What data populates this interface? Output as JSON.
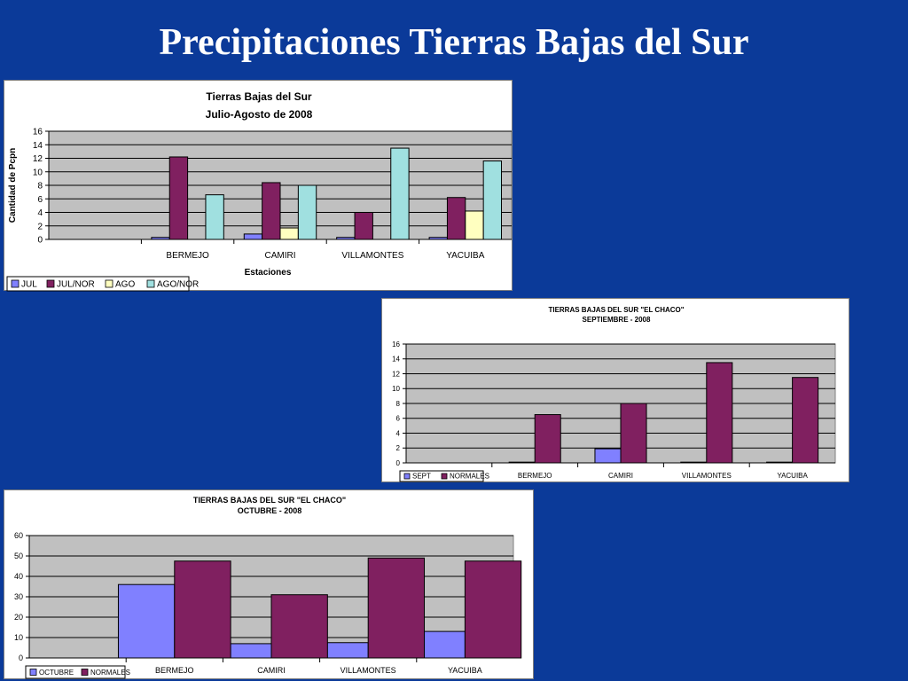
{
  "slide": {
    "title": "Precipitaciones Tierras Bajas del Sur"
  },
  "colors": {
    "background": "#0b3a99",
    "JUL": "#8080ff",
    "JUL/NOR": "#802060",
    "AGO": "#ffffc0",
    "AGO/NOR": "#a0e0e0",
    "SEPT": "#8080ff",
    "NORMALES": "#802060",
    "OCTUBRE": "#8080ff",
    "plot_area": "#c0c0c0"
  },
  "chart_data": [
    {
      "type": "bar",
      "title": "Tierras Bajas del Sur",
      "subtitle": "Julio-Agosto de 2008",
      "xlabel": "Estaciones",
      "ylabel": "Cantidad de Pcpn",
      "ylim": [
        0,
        16
      ],
      "yticks": [
        0,
        2,
        4,
        6,
        8,
        10,
        12,
        14,
        16
      ],
      "categories": [
        "",
        "BERMEJO",
        "CAMIRI",
        "VILLAMONTES",
        "YACUIBA"
      ],
      "grid": true,
      "legend_placement": "bottom-left",
      "series": [
        {
          "name": "JUL",
          "values": [
            0,
            0.3,
            0.8,
            0.3,
            0.3
          ]
        },
        {
          "name": "JUL/NOR",
          "values": [
            0,
            12.2,
            8.4,
            4.0,
            6.2
          ]
        },
        {
          "name": "AGO",
          "values": [
            0,
            0,
            1.7,
            0,
            4.2
          ]
        },
        {
          "name": "AGO/NOR",
          "values": [
            0,
            6.6,
            8.0,
            13.5,
            11.6
          ]
        }
      ]
    },
    {
      "type": "bar",
      "title": "TIERRAS BAJAS DEL SUR \"EL CHACO\"",
      "subtitle": "SEPTIEMBRE - 2008",
      "xlabel": "",
      "ylabel": "",
      "ylim": [
        0,
        16
      ],
      "yticks": [
        0,
        2,
        4,
        6,
        8,
        10,
        12,
        14,
        16
      ],
      "categories": [
        "",
        "BERMEJO",
        "CAMIRI",
        "VILLAMONTES",
        "YACUIBA"
      ],
      "grid": true,
      "legend_placement": "bottom-left",
      "series": [
        {
          "name": "SEPT",
          "values": [
            0,
            0.1,
            1.9,
            0.1,
            0.1
          ]
        },
        {
          "name": "NORMALES",
          "values": [
            0,
            6.5,
            8.0,
            13.5,
            11.5
          ]
        }
      ]
    },
    {
      "type": "bar",
      "title": "TIERRAS BAJAS DEL SUR \"EL CHACO\"",
      "subtitle": "OCTUBRE - 2008",
      "xlabel": "",
      "ylabel": "",
      "ylim": [
        0,
        60
      ],
      "yticks": [
        0,
        10,
        20,
        30,
        40,
        50,
        60
      ],
      "categories": [
        "",
        "BERMEJO",
        "CAMIRI",
        "VILLAMONTES",
        "YACUIBA"
      ],
      "grid": true,
      "legend_placement": "bottom-left",
      "series": [
        {
          "name": "OCTUBRE",
          "values": [
            0,
            36,
            7,
            7.5,
            13
          ]
        },
        {
          "name": "NORMALES",
          "values": [
            0,
            47.5,
            31,
            49,
            47.5
          ]
        }
      ]
    }
  ]
}
